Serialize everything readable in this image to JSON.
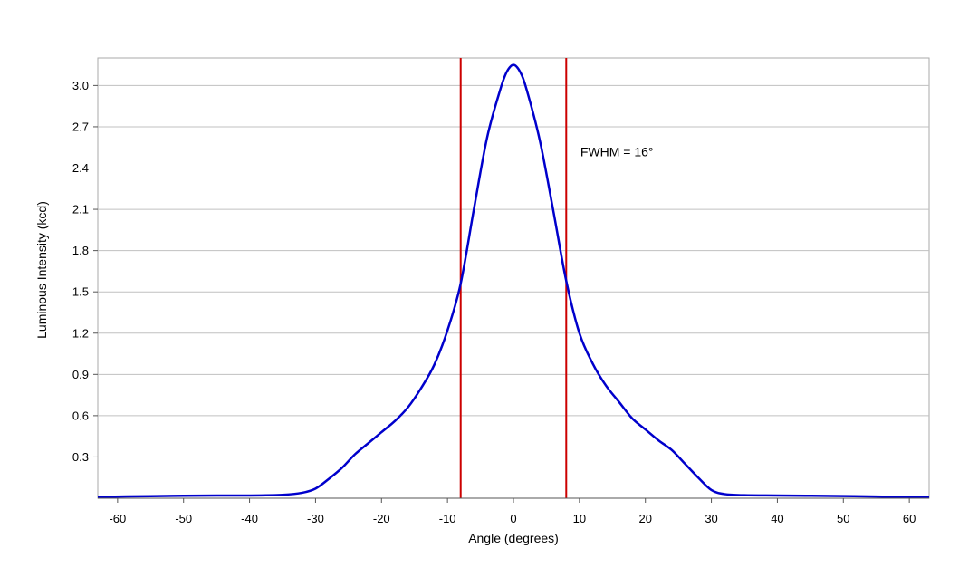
{
  "chart_data": {
    "type": "line",
    "title": "",
    "xlabel": "Angle (degrees)",
    "ylabel": "Luminous Intensity (kcd)",
    "xlim": [
      -63,
      63
    ],
    "ylim": [
      0,
      3.2
    ],
    "x_ticks": [
      -60,
      -50,
      -40,
      -30,
      -20,
      -10,
      0,
      10,
      20,
      30,
      40,
      50,
      60
    ],
    "y_ticks": [
      0.3,
      0.6,
      0.9,
      1.2,
      1.5,
      1.8,
      2.1,
      2.4,
      2.7,
      3.0
    ],
    "y_tick_labels": [
      "0.3",
      "0.6",
      "0.9",
      "1.2",
      "1.5",
      "1.8",
      "2.1",
      "2.4",
      "2.7",
      "3.0"
    ],
    "grid": "horizontal",
    "legend": "none",
    "series": [
      {
        "color": "#0000cc",
        "x": [
          -63,
          -55,
          -50,
          -45,
          -40,
          -35,
          -32,
          -30,
          -28,
          -26,
          -24,
          -22,
          -20,
          -18,
          -16,
          -14,
          -12,
          -10,
          -8,
          -6,
          -4,
          -2,
          -1,
          0,
          1,
          2,
          4,
          6,
          8,
          10,
          12,
          14,
          16,
          18,
          20,
          22,
          24,
          26,
          28,
          30,
          32,
          35,
          40,
          45,
          50,
          55,
          63
        ],
        "y": [
          0.01,
          0.015,
          0.018,
          0.02,
          0.02,
          0.025,
          0.04,
          0.07,
          0.14,
          0.22,
          0.32,
          0.4,
          0.48,
          0.56,
          0.66,
          0.8,
          0.97,
          1.22,
          1.56,
          2.1,
          2.62,
          2.97,
          3.1,
          3.15,
          3.1,
          2.97,
          2.6,
          2.1,
          1.58,
          1.2,
          0.98,
          0.82,
          0.7,
          0.58,
          0.5,
          0.42,
          0.35,
          0.25,
          0.15,
          0.06,
          0.03,
          0.022,
          0.02,
          0.018,
          0.016,
          0.012,
          0.005
        ]
      }
    ],
    "reference_lines": [
      {
        "x": -8,
        "color": "#cc0000"
      },
      {
        "x": 8,
        "color": "#cc0000"
      }
    ],
    "annotations": [
      {
        "text": "FWHM = 16°",
        "x": 10,
        "y": 2.52
      }
    ]
  }
}
